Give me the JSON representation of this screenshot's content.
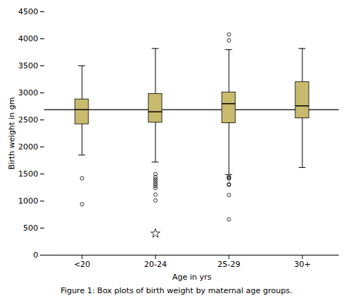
{
  "chart_data": {
    "type": "box",
    "categories": [
      "<20",
      "20-24",
      "25-29",
      "30+"
    ],
    "boxes": [
      {
        "q1": 2420,
        "median": 2690,
        "q3": 2880,
        "whisker_low": 1850,
        "whisker_high": 3500,
        "outliers": [
          1420,
          940
        ],
        "fliers_star": []
      },
      {
        "q1": 2450,
        "median": 2650,
        "q3": 2980,
        "whisker_low": 1720,
        "whisker_high": 3820,
        "outliers": [
          1500,
          1440,
          1400,
          1360,
          1320,
          1280,
          1240,
          1120,
          1010
        ],
        "fliers_star": [
          400
        ]
      },
      {
        "q1": 2440,
        "median": 2800,
        "q3": 3010,
        "whisker_low": 1490,
        "whisker_high": 3800,
        "outliers": [
          4080,
          3970,
          1450,
          1430,
          1415,
          1310,
          1300,
          1110,
          660
        ],
        "fliers_star": []
      },
      {
        "q1": 2530,
        "median": 2760,
        "q3": 3200,
        "whisker_low": 1620,
        "whisker_high": 3820,
        "outliers": [],
        "fliers_star": []
      }
    ],
    "reference_line": 2690,
    "color": "#c8bb6e",
    "ylim": [
      0,
      4500
    ],
    "yticks": [
      0,
      500,
      1000,
      1500,
      2000,
      2500,
      3000,
      3500,
      4000,
      4500
    ],
    "xlabel": "Age in yrs",
    "ylabel": "Birth weight in gm",
    "caption": "Figure 1: Box plots of birth weight by maternal age groups.",
    "grid": false
  }
}
